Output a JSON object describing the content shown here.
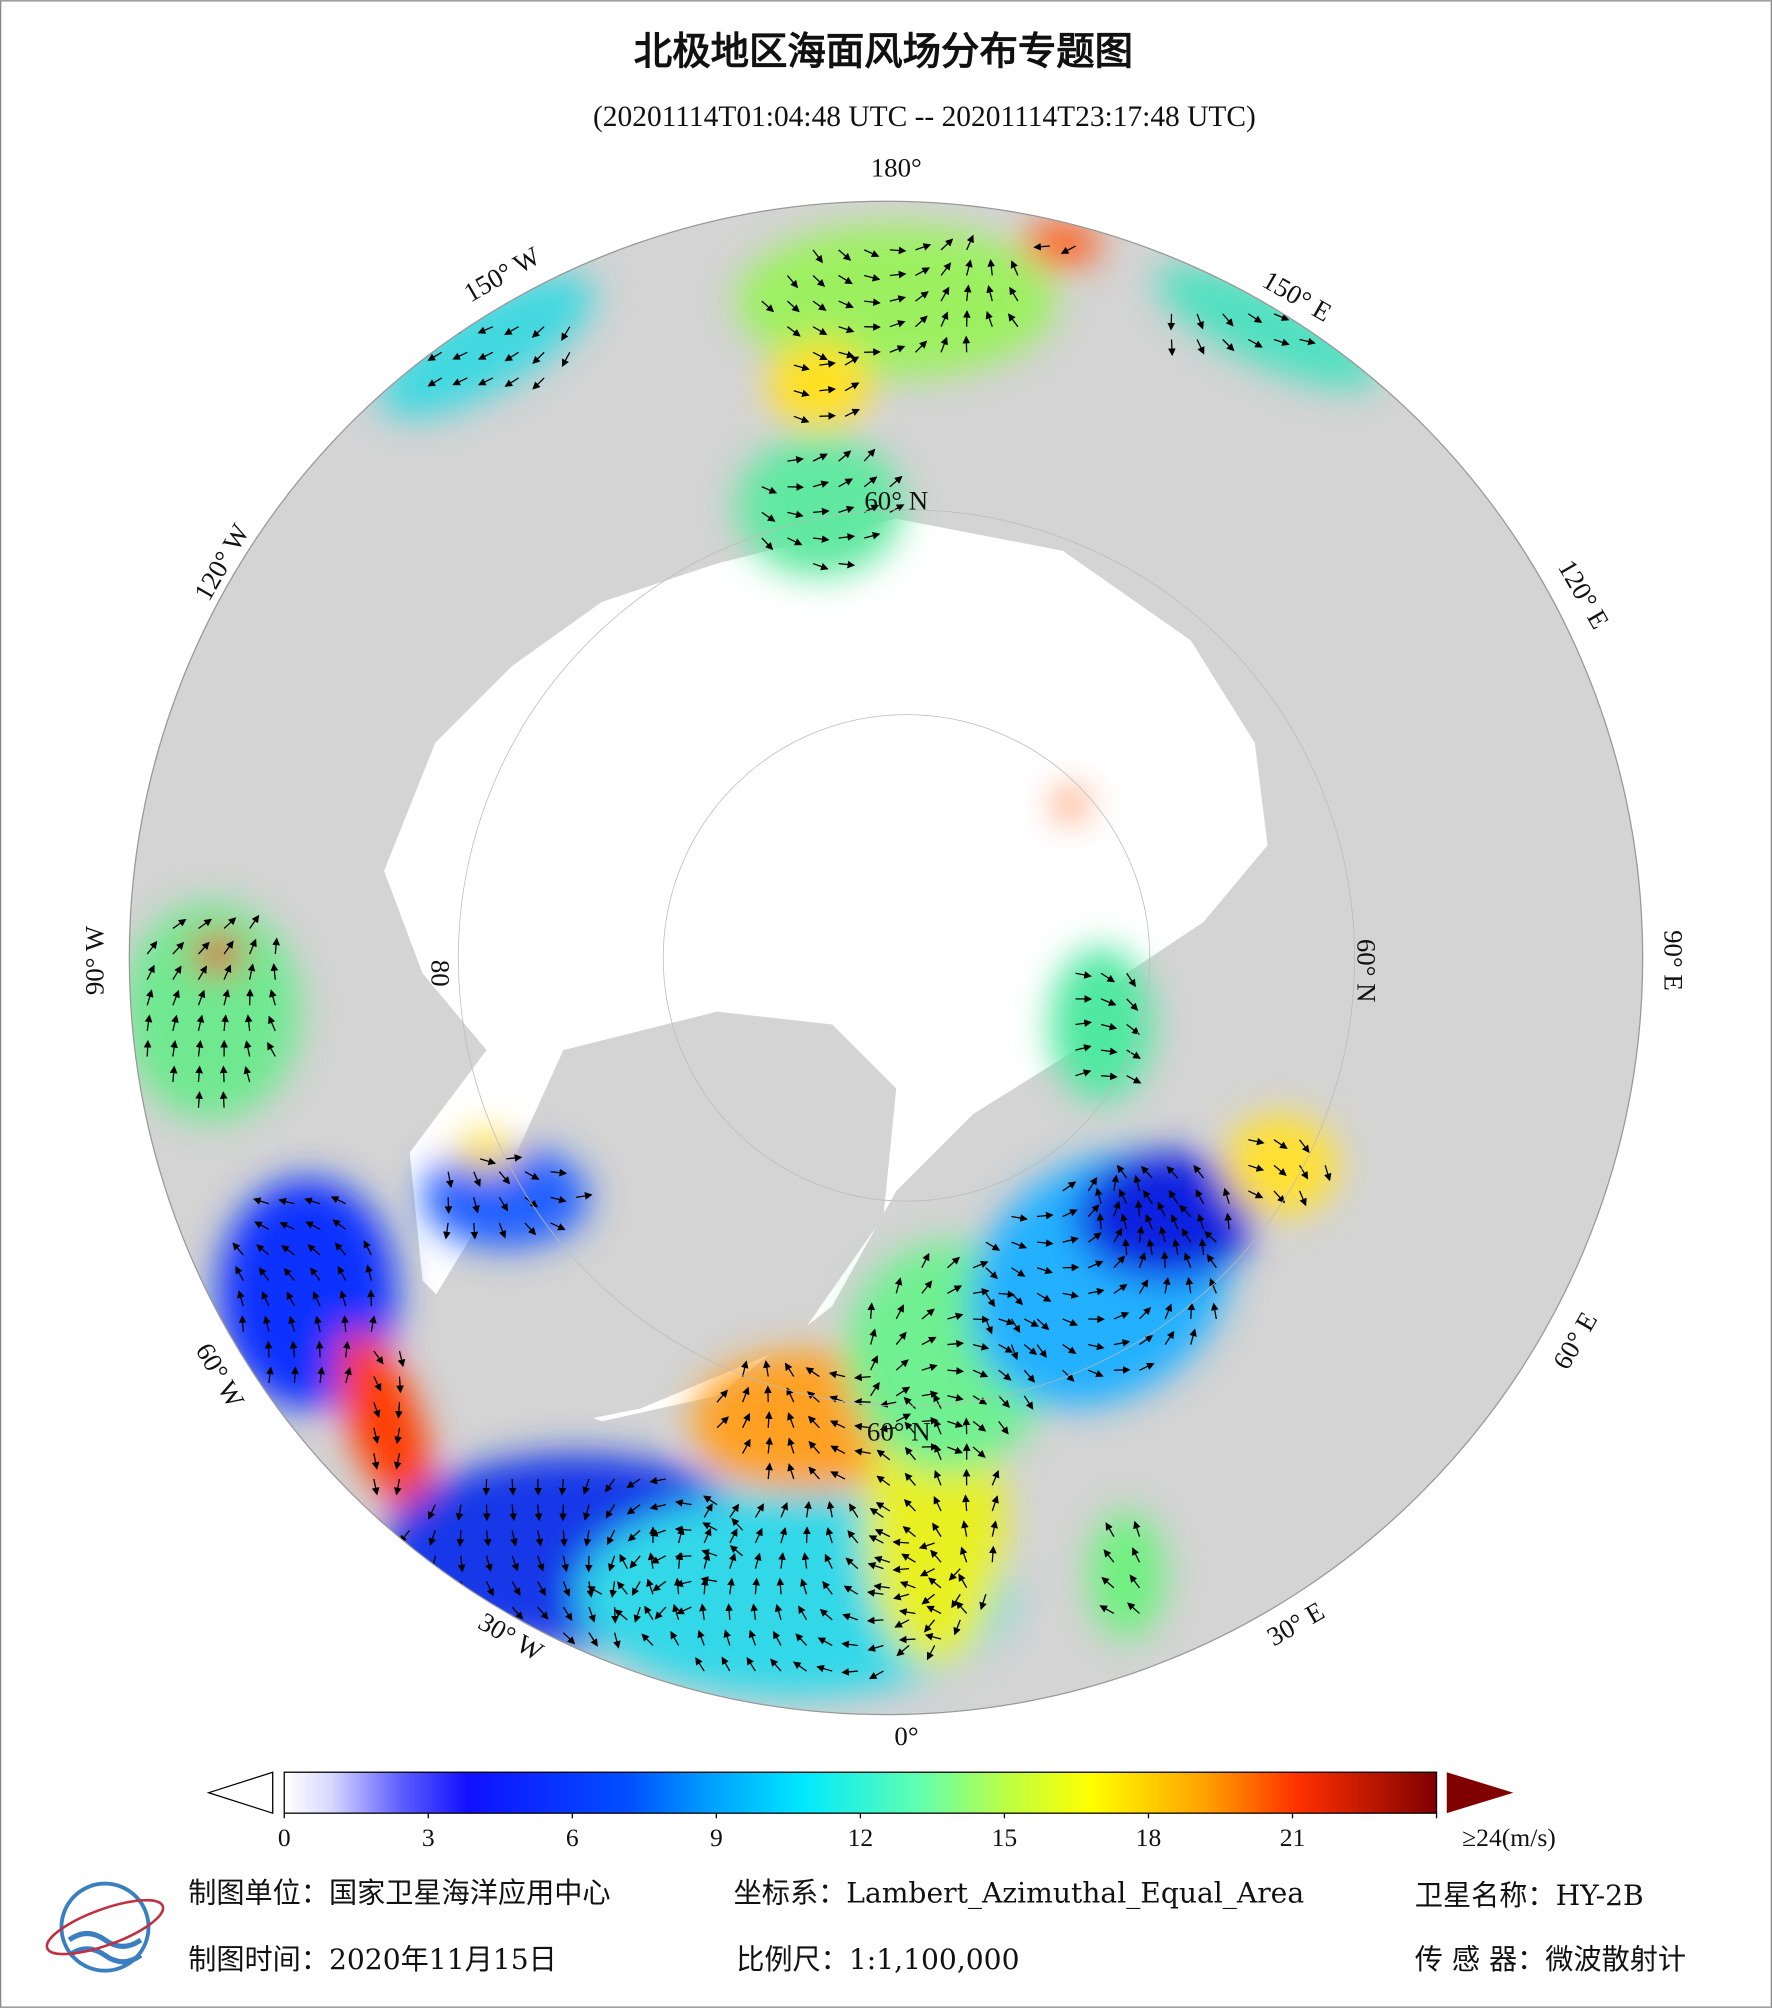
{
  "header": {
    "title": "北极地区海面风场分布专题图",
    "subtitle": "(20201114T01:04:48 UTC -- 20201114T23:17:48 UTC)"
  },
  "map": {
    "longitude_labels": [
      "180°",
      "150° W",
      "120° W",
      "90° W",
      "60° W",
      "30° W",
      "0°",
      "30° E",
      "60° E",
      "90° E",
      "120° E",
      "150° E"
    ],
    "latitude_labels": [
      "60° N",
      "60° N",
      "60° N",
      "80"
    ]
  },
  "colorbar": {
    "ticks": [
      0,
      3,
      6,
      9,
      12,
      15,
      18,
      21,
      {
        "value": 24,
        "label": "≥24(m/s)"
      }
    ],
    "range": [
      0,
      24
    ]
  },
  "footer": {
    "unit": "制图单位：国家卫星海洋应用中心",
    "projection": "坐标系：Lambert_Azimuthal_Equal_Area",
    "satellite": "卫星名称：HY-2B",
    "date": "制图时间：2020年11月15日",
    "scale": "比例尺：1:1,100,000",
    "sensor": "传 感 器：微波散射计"
  }
}
